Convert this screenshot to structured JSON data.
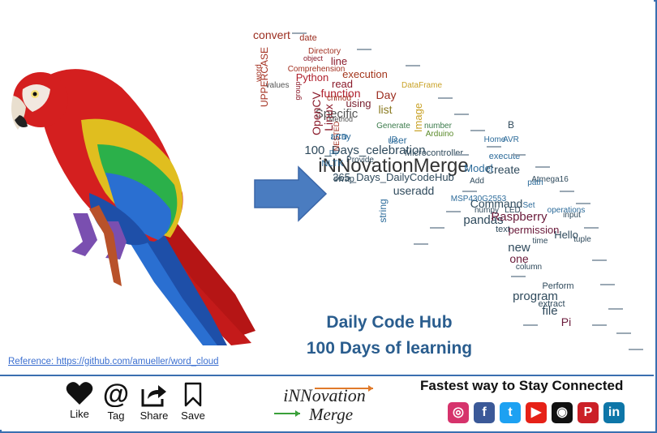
{
  "headline": {
    "line1": "Daily Code Hub",
    "line2": "100 Days of learning"
  },
  "reference": "Reference: https://github.com/amueller/word_cloud",
  "actions": [
    {
      "label": "Like",
      "icon": "heart-icon"
    },
    {
      "label": "Tag",
      "icon": "at-sign-icon"
    },
    {
      "label": "Share",
      "icon": "share-icon"
    },
    {
      "label": "Save",
      "icon": "bookmark-icon"
    }
  ],
  "logo": {
    "line1": "iNNovation",
    "line2": "Merge"
  },
  "stay_connected": "Fastest way to Stay Connected",
  "socials": [
    {
      "name": "instagram-icon",
      "color": "#d6336c",
      "glyph": "◎"
    },
    {
      "name": "facebook-icon",
      "color": "#3b5998",
      "glyph": "f"
    },
    {
      "name": "twitter-icon",
      "color": "#1da1f2",
      "glyph": "t"
    },
    {
      "name": "youtube-icon",
      "color": "#e62117",
      "glyph": "▶"
    },
    {
      "name": "github-icon",
      "color": "#111111",
      "glyph": "◉"
    },
    {
      "name": "pinterest-icon",
      "color": "#cb2027",
      "glyph": "P"
    },
    {
      "name": "linkedin-icon",
      "color": "#0e76a8",
      "glyph": "in"
    }
  ],
  "wordcloud": {
    "words": [
      {
        "text": "iNNovationMerge",
        "color": "#333333"
      },
      {
        "text": "100_Days_celebration",
        "color": "#2f4a5c"
      },
      {
        "text": "365_Days_DailyCodeHub",
        "color": "#2f4a5c"
      },
      {
        "text": "convert",
        "color": "#9b2d1f"
      },
      {
        "text": "date",
        "color": "#9b2d1f"
      },
      {
        "text": "Python",
        "color": "#b0212e"
      },
      {
        "text": "execution",
        "color": "#a3361c"
      },
      {
        "text": "line",
        "color": "#8a1a2a"
      },
      {
        "text": "Comprehension",
        "color": "#a33020"
      },
      {
        "text": "Directory",
        "color": "#a33020"
      },
      {
        "text": "object",
        "color": "#8a1a2a"
      },
      {
        "text": "function",
        "color": "#b0212e"
      },
      {
        "text": "read",
        "color": "#8a1a2a"
      },
      {
        "text": "Day",
        "color": "#9b2d1f"
      },
      {
        "text": "using",
        "color": "#7a2231"
      },
      {
        "text": "Specific",
        "color": "#555555"
      },
      {
        "text": "list",
        "color": "#8a7a20"
      },
      {
        "text": "DataFrame",
        "color": "#c9a227"
      },
      {
        "text": "Image",
        "color": "#c9a227"
      },
      {
        "text": "user",
        "color": "#2c6b9a"
      },
      {
        "text": "Generate",
        "color": "#3a7a4a"
      },
      {
        "text": "number",
        "color": "#3a7a4a"
      },
      {
        "text": "Arduino",
        "color": "#5a8a2a"
      },
      {
        "text": "Microcontroller",
        "color": "#2f4a5c"
      },
      {
        "text": "Model",
        "color": "#2c6b9a"
      },
      {
        "text": "Create",
        "color": "#2f4a5c"
      },
      {
        "text": "useradd",
        "color": "#2f4a5c"
      },
      {
        "text": "string",
        "color": "#2c6b9a"
      },
      {
        "text": "Command",
        "color": "#2f4a5c"
      },
      {
        "text": "Set",
        "color": "#2c6b9a"
      },
      {
        "text": "pandas",
        "color": "#2f4a5c"
      },
      {
        "text": "Raspberry",
        "color": "#6a1a3a"
      },
      {
        "text": "permission",
        "color": "#6a1a3a"
      },
      {
        "text": "Hello",
        "color": "#2f4a5c"
      },
      {
        "text": "new",
        "color": "#2f4a5c"
      },
      {
        "text": "one",
        "color": "#6a1a3a"
      },
      {
        "text": "program",
        "color": "#2f4a5c"
      },
      {
        "text": "file",
        "color": "#2f4a5c"
      },
      {
        "text": "Pi",
        "color": "#6a1a3a"
      },
      {
        "text": "OpenCV",
        "color": "#8a1a2a"
      },
      {
        "text": "Linux",
        "color": "#8a1a2a"
      },
      {
        "text": "Home",
        "color": "#2c6b9a"
      },
      {
        "text": "execute",
        "color": "#2c6b9a"
      },
      {
        "text": "Atmega16",
        "color": "#2f4a5c"
      },
      {
        "text": "MSP430G2553",
        "color": "#2c6b9a"
      },
      {
        "text": "numpy",
        "color": "#2f4a5c"
      },
      {
        "text": "LED",
        "color": "#2f4a5c"
      },
      {
        "text": "text",
        "color": "#2f4a5c"
      },
      {
        "text": "operations",
        "color": "#2c6b9a"
      },
      {
        "text": "tuple",
        "color": "#2f4a5c"
      },
      {
        "text": "extract",
        "color": "#2f4a5c"
      },
      {
        "text": "Perform",
        "color": "#2f4a5c"
      },
      {
        "text": "column",
        "color": "#2f4a5c"
      },
      {
        "text": "NLTK",
        "color": "#2c6b9a"
      },
      {
        "text": "array",
        "color": "#2c6b9a"
      },
      {
        "text": "UPPERCASE",
        "color": "#a33020"
      },
      {
        "text": "word",
        "color": "#a33020"
      },
      {
        "text": "values",
        "color": "#555555"
      },
      {
        "text": "chmod",
        "color": "#a33020"
      },
      {
        "text": "Method",
        "color": "#555555"
      },
      {
        "text": "Provide",
        "color": "#2f4a5c"
      },
      {
        "text": "input",
        "color": "#2f4a5c"
      },
      {
        "text": "swap",
        "color": "#2f4a5c"
      },
      {
        "text": "path",
        "color": "#2c6b9a"
      },
      {
        "text": "time",
        "color": "#2f4a5c"
      },
      {
        "text": "B",
        "color": "#2f4a5c"
      },
      {
        "text": "AVR",
        "color": "#2c6b9a"
      },
      {
        "text": "Add",
        "color": "#2f4a5c"
      },
      {
        "text": "ID",
        "color": "#2c6b9a"
      },
      {
        "text": "LCD",
        "color": "#2c6b9a"
      },
      {
        "text": "pip",
        "color": "#2c6b9a"
      },
      {
        "text": "group",
        "color": "#8a1a2a"
      },
      {
        "text": "NESTED",
        "color": "#a33020"
      }
    ]
  }
}
